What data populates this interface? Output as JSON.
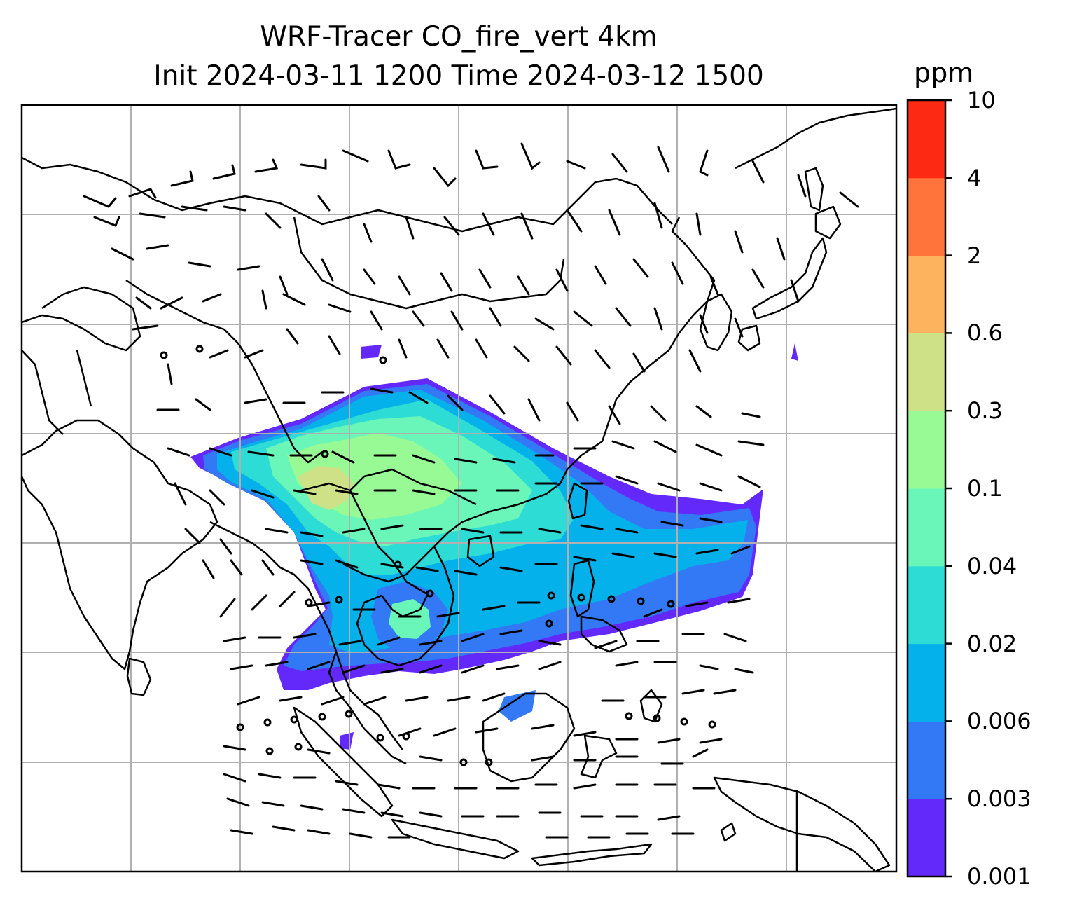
{
  "title": {
    "line1": "WRF-Tracer CO_fire_vert 4km",
    "line2": "Init 2024-03-11 1200 Time 2024-03-12 1500"
  },
  "colorbar": {
    "units": "ppm",
    "levels": [
      "0.001",
      "0.003",
      "0.006",
      "0.02",
      "0.04",
      "0.1",
      "0.3",
      "0.6",
      "2",
      "4",
      "10"
    ],
    "colors": [
      "#6329fb",
      "#3378f4",
      "#05b1ea",
      "#2ddcd5",
      "#69f6b8",
      "#97fa94",
      "#cfe186",
      "#fdb25e",
      "#fe743b",
      "#fe2913"
    ]
  },
  "map": {
    "variable": "CO_fire_vert",
    "projection": "lambert-style grid with lat/lon gridlines",
    "gridlines": true,
    "overlay": "wind barbs",
    "coastline_color": "#000000",
    "gridline_color": "#b0b0b0"
  }
}
